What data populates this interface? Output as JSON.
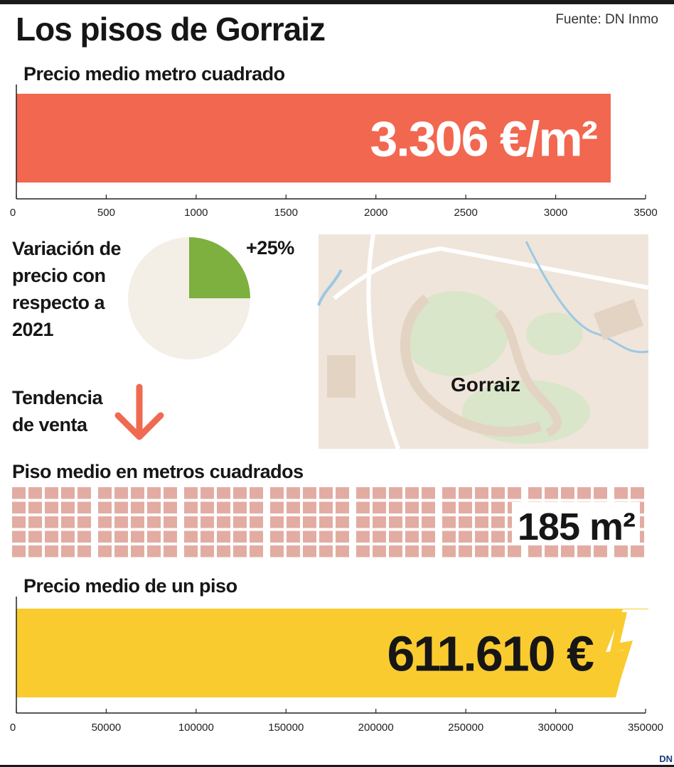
{
  "title": "Los pisos de Gorraiz",
  "source": "Fuente: DN Inmo",
  "map_label": "Gorraiz",
  "trend": {
    "lines": [
      "Tendencia",
      "de venta"
    ],
    "direction": "down",
    "color": "#ef6a50"
  },
  "logo": "DN",
  "chart_data": [
    {
      "type": "bar",
      "title": "Precio medio metro cuadrado",
      "values": [
        3306
      ],
      "value_labels": [
        "3.306 €/m²"
      ],
      "color": "#f2674f",
      "xlim": [
        0,
        3500
      ],
      "xticks": [
        0,
        500,
        1000,
        1500,
        2000,
        2500,
        3000,
        3500
      ]
    },
    {
      "type": "pie",
      "title_lines": [
        "Variación de",
        "precio con",
        "respecto a",
        "2021"
      ],
      "values": [
        25
      ],
      "value_labels": [
        "+25%"
      ],
      "color": "#7db03e",
      "background": "#f3eee6"
    },
    {
      "type": "waffle",
      "title": "Piso medio en metros cuadrados",
      "values": [
        185
      ],
      "value_labels": [
        "185 m²"
      ],
      "color": "#e2aca3"
    },
    {
      "type": "bar",
      "title": "Precio medio de un piso",
      "values": [
        611610
      ],
      "value_labels": [
        "611.610 €"
      ],
      "color": "#f9cb2f",
      "xlim": [
        0,
        350000
      ],
      "xticks": [
        0,
        50000,
        100000,
        150000,
        200000,
        250000,
        300000,
        350000
      ]
    }
  ]
}
